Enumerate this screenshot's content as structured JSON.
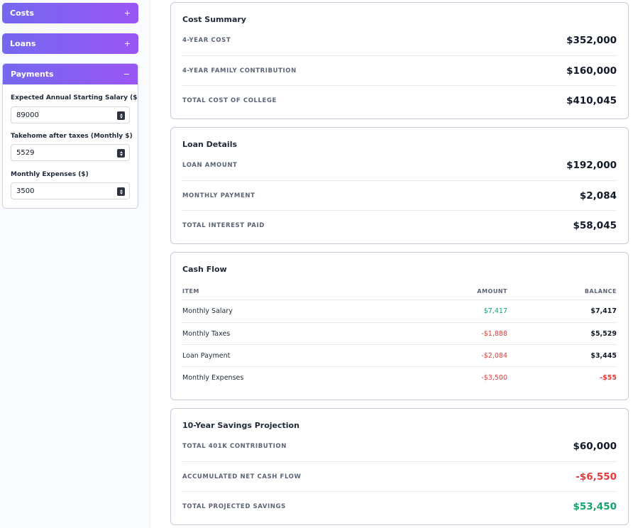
{
  "sidebar": {
    "costs": {
      "label": "Costs",
      "toggle": "+"
    },
    "loans": {
      "label": "Loans",
      "toggle": "+"
    },
    "payments": {
      "label": "Payments",
      "toggle": "−",
      "fields": [
        {
          "label": "Expected Annual Starting Salary ($)",
          "value": "89000"
        },
        {
          "label": "Takehome after taxes (Monthly $)",
          "value": "5529"
        },
        {
          "label": "Monthly Expenses ($)",
          "value": "3500"
        }
      ]
    }
  },
  "cost_summary": {
    "title": "Cost Summary",
    "rows": [
      {
        "label": "4-YEAR COST",
        "value": "$352,000"
      },
      {
        "label": "4-YEAR FAMILY CONTRIBUTION",
        "value": "$160,000"
      },
      {
        "label": "TOTAL COST OF COLLEGE",
        "value": "$410,045"
      }
    ]
  },
  "loan_details": {
    "title": "Loan Details",
    "rows": [
      {
        "label": "LOAN AMOUNT",
        "value": "$192,000"
      },
      {
        "label": "MONTHLY PAYMENT",
        "value": "$2,084"
      },
      {
        "label": "TOTAL INTEREST PAID",
        "value": "$58,045"
      }
    ]
  },
  "cash_flow": {
    "title": "Cash Flow",
    "headers": {
      "item": "ITEM",
      "amount": "AMOUNT",
      "balance": "BALANCE"
    },
    "rows": [
      {
        "item": "Monthly Salary",
        "amount": "$7,417",
        "balance": "$7,417"
      },
      {
        "item": "Monthly Taxes",
        "amount": "-$1,888",
        "balance": "$5,529"
      },
      {
        "item": "Loan Payment",
        "amount": "-$2,084",
        "balance": "$3,445"
      },
      {
        "item": "Monthly Expenses",
        "amount": "-$3,500",
        "balance": "-$55"
      }
    ]
  },
  "savings_projection": {
    "title": "10-Year Savings Projection",
    "rows": [
      {
        "label": "TOTAL 401K CONTRIBUTION",
        "value": "$60,000"
      },
      {
        "label": "ACCUMULATED NET CASH FLOW",
        "value": "-$6,550"
      },
      {
        "label": "TOTAL PROJECTED SAVINGS",
        "value": "$53,450"
      }
    ]
  },
  "colors": {
    "accent_start": "#7468f0",
    "accent_end": "#9a56f4",
    "positive": "#11a56b",
    "negative": "#e23b3b"
  }
}
